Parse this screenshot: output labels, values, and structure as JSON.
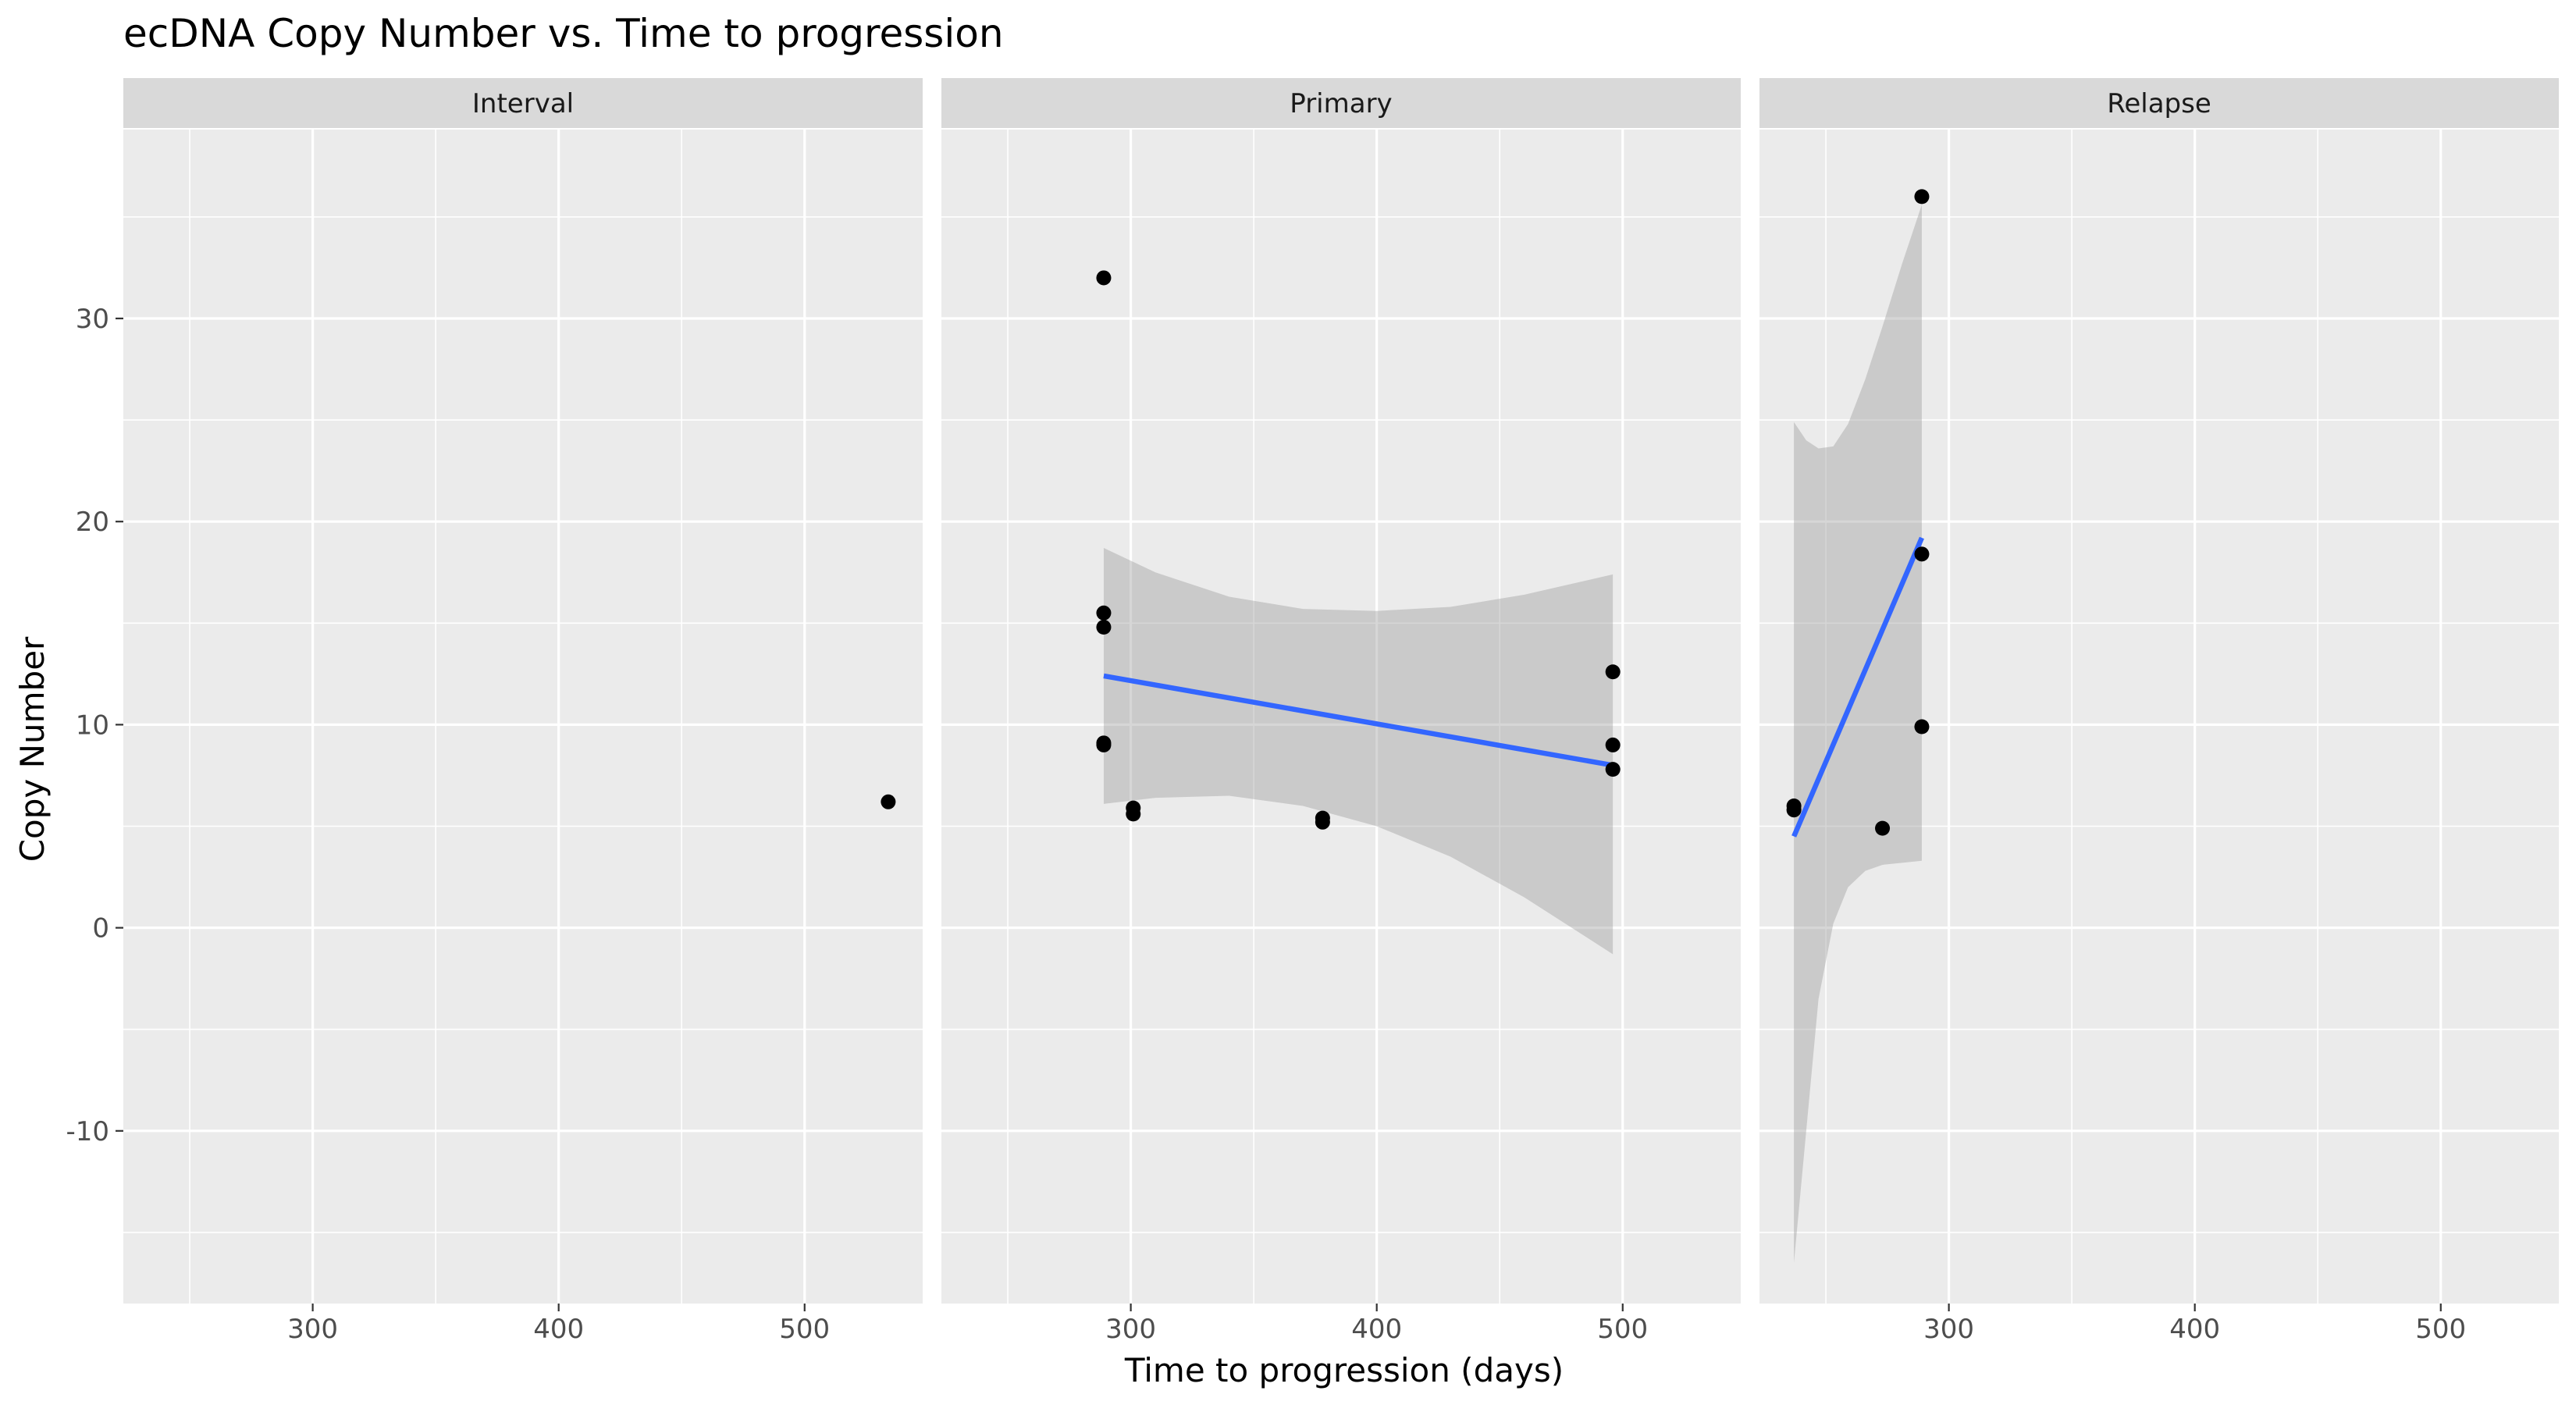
{
  "chart_data": {
    "type": "scatter",
    "title": "ecDNA Copy Number vs. Time to progression",
    "xlabel": "Time to progression (days)",
    "ylabel": "Copy Number",
    "xlim": [
      223,
      548
    ],
    "ylim": [
      -18.5,
      39.3
    ],
    "x_ticks": [
      300,
      400,
      500
    ],
    "y_ticks": [
      -10,
      0,
      10,
      20,
      30
    ],
    "grid": true,
    "facets": [
      {
        "label": "Interval",
        "points": [
          {
            "x": 534,
            "y": 6.2
          }
        ],
        "fit": null
      },
      {
        "label": "Primary",
        "points": [
          {
            "x": 289,
            "y": 32.0
          },
          {
            "x": 289,
            "y": 15.5
          },
          {
            "x": 289,
            "y": 14.8
          },
          {
            "x": 289,
            "y": 9.1
          },
          {
            "x": 289,
            "y": 9.0
          },
          {
            "x": 301,
            "y": 5.9
          },
          {
            "x": 301,
            "y": 5.6
          },
          {
            "x": 378,
            "y": 5.4
          },
          {
            "x": 378,
            "y": 5.2
          },
          {
            "x": 496,
            "y": 12.6
          },
          {
            "x": 496,
            "y": 9.0
          },
          {
            "x": 496,
            "y": 7.8
          }
        ],
        "fit": {
          "x": [
            289,
            496
          ],
          "y": [
            12.4,
            8.0
          ],
          "ci": [
            {
              "x": 289,
              "lower": 6.1,
              "upper": 18.7
            },
            {
              "x": 310,
              "lower": 6.4,
              "upper": 17.5
            },
            {
              "x": 340,
              "lower": 6.5,
              "upper": 16.3
            },
            {
              "x": 370,
              "lower": 6.0,
              "upper": 15.7
            },
            {
              "x": 400,
              "lower": 5.0,
              "upper": 15.6
            },
            {
              "x": 430,
              "lower": 3.5,
              "upper": 15.8
            },
            {
              "x": 460,
              "lower": 1.5,
              "upper": 16.4
            },
            {
              "x": 496,
              "lower": -1.3,
              "upper": 17.4
            }
          ]
        }
      },
      {
        "label": "Relapse",
        "points": [
          {
            "x": 237,
            "y": 6.0
          },
          {
            "x": 237,
            "y": 5.8
          },
          {
            "x": 273,
            "y": 4.9
          },
          {
            "x": 289,
            "y": 36.0
          },
          {
            "x": 289,
            "y": 18.4
          },
          {
            "x": 289,
            "y": 9.9
          }
        ],
        "fit": {
          "x": [
            237,
            289
          ],
          "y": [
            4.5,
            19.2
          ],
          "ci": [
            {
              "x": 237,
              "lower": -16.5,
              "upper": 24.9
            },
            {
              "x": 242,
              "lower": -10.0,
              "upper": 24.0
            },
            {
              "x": 247,
              "lower": -3.5,
              "upper": 23.6
            },
            {
              "x": 253,
              "lower": 0.2,
              "upper": 23.7
            },
            {
              "x": 259,
              "lower": 2.0,
              "upper": 24.8
            },
            {
              "x": 266,
              "lower": 2.8,
              "upper": 27.0
            },
            {
              "x": 273,
              "lower": 3.1,
              "upper": 29.6
            },
            {
              "x": 281,
              "lower": 3.2,
              "upper": 32.7
            },
            {
              "x": 289,
              "lower": 3.3,
              "upper": 35.6
            }
          ]
        }
      }
    ]
  }
}
